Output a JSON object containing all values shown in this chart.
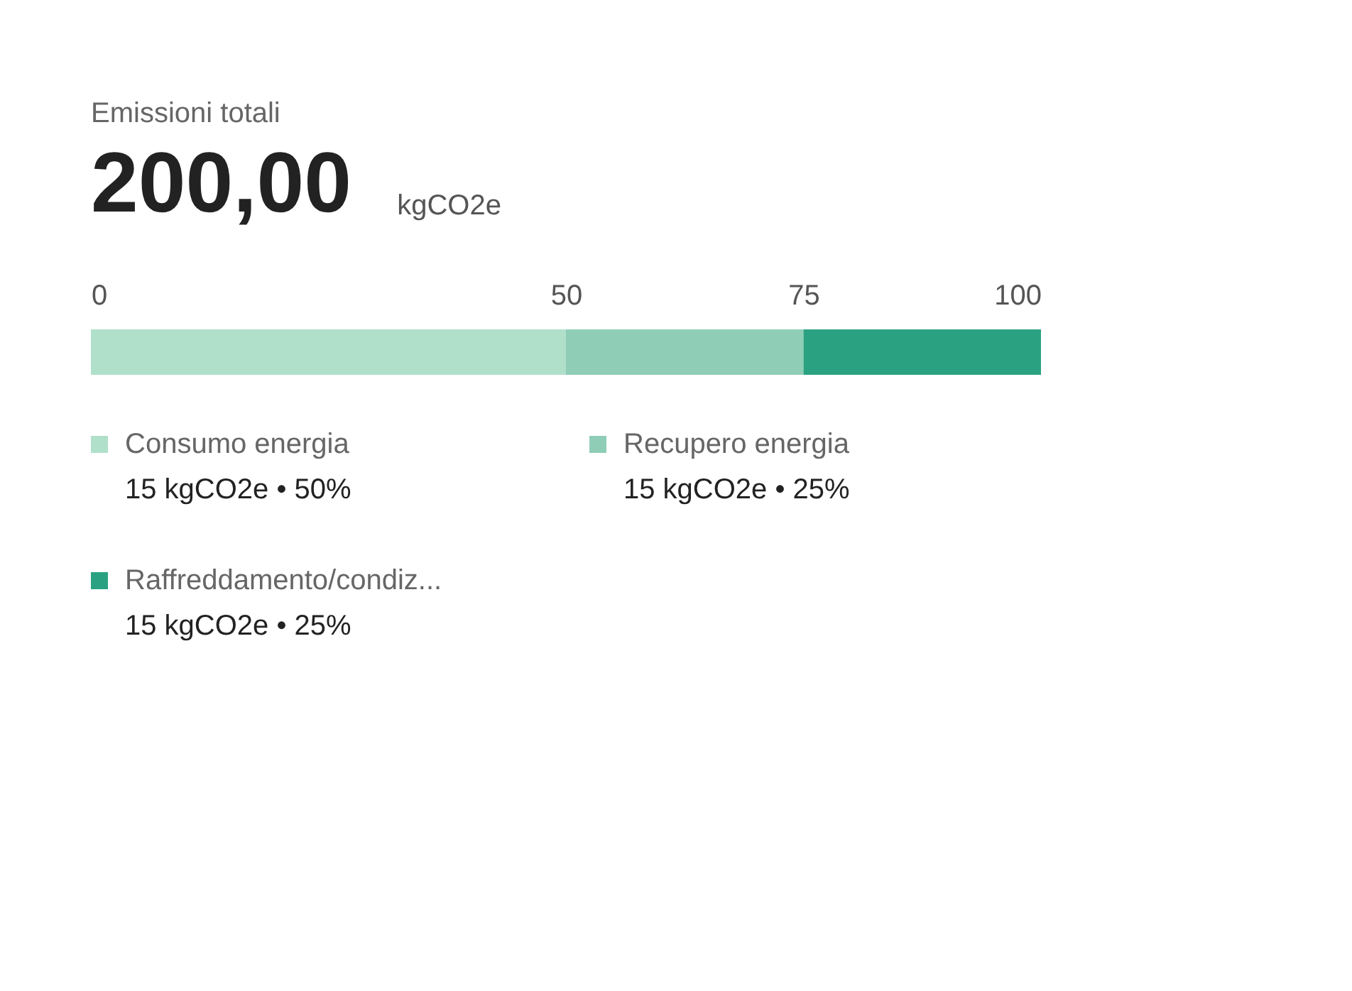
{
  "chart_data": {
    "type": "bar",
    "orientation": "horizontal",
    "stacked": true,
    "title": "Emissioni totali",
    "subtitle": "200,00",
    "annotations": [
      "kgCO2e",
      "15 kgCO2e • 50%",
      "15 kgCO2e • 25%",
      "15 kgCO2e • 25%"
    ],
    "categories": [
      null
    ],
    "series": [
      {
        "name": "Consumo energia",
        "color": "#b0e0ca",
        "values": [
          50
        ]
      },
      {
        "name": "Recupero energia",
        "color": "#8fcdb7",
        "values": [
          25
        ]
      },
      {
        "name": "Raffreddamento/condiz...",
        "color": "#2aa282",
        "values": [
          25
        ]
      }
    ],
    "xlim": [
      0,
      100
    ],
    "xticks": [
      0,
      50,
      75,
      100
    ],
    "legend": "bottom"
  }
}
